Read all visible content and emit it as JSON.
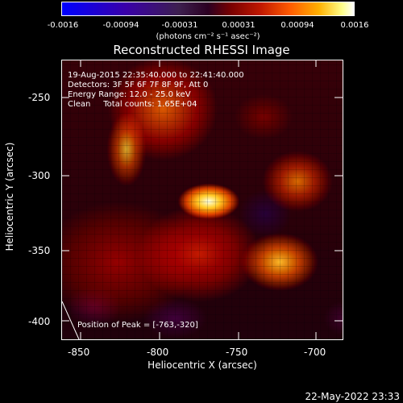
{
  "colorbar": {
    "ticks": [
      "-0.0016",
      "-0.00094",
      "-0.00031",
      "0.00031",
      "0.00094",
      "0.0016"
    ],
    "units": "(photons cm⁻² s⁻¹ asec⁻²)"
  },
  "image": {
    "title": "Reconstructed RHESSI Image",
    "info_lines": [
      "19-Aug-2015 22:35:40.000 to 22:41:40.000",
      "Detectors: 3F 5F 6F 7F 8F 9F, Att 0",
      "Energy Range: 12.0 - 25.0 keV",
      "Clean     Total counts: 1.65E+04"
    ],
    "peak_label": "Position of Peak = [-763,-320]"
  },
  "axes": {
    "x_title": "Heliocentric X (arcsec)",
    "y_title": "Heliocentric Y (arcsec)",
    "x_ticks": [
      "-850",
      "-800",
      "-750",
      "-700"
    ],
    "y_ticks": [
      "-250",
      "-300",
      "-350",
      "-400"
    ]
  },
  "footer": {
    "timestamp": "22-May-2022 23:33"
  }
}
